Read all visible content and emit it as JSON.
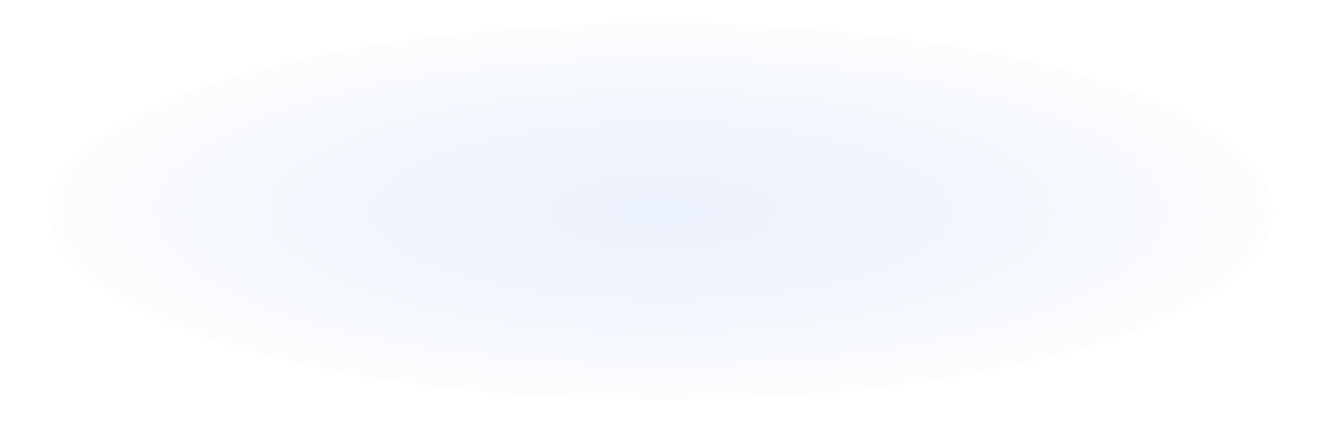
{
  "background_color": "#ffffff",
  "glow_color": "#ecf2fd"
}
